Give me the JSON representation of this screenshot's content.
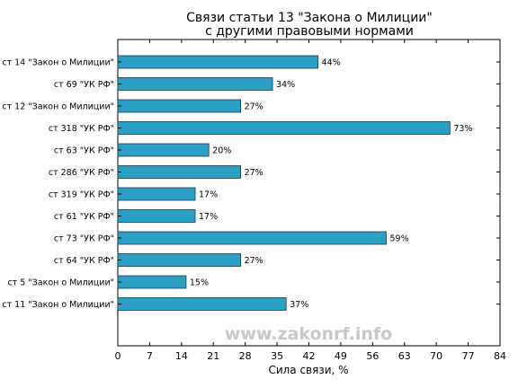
{
  "chart_data": {
    "type": "bar",
    "orientation": "horizontal",
    "title_lines": [
      "Связи статьи 13 \"Закона о Милиции\"",
      "с другими правовыми нормами"
    ],
    "xlabel": "Сила связи, %",
    "ylabel": "",
    "categories": [
      "ст 14 \"Закон о Милиции\"",
      "ст 69 \"УК РФ\"",
      "ст 12 \"Закон о Милиции\"",
      "ст 318 \"УК РФ\"",
      "ст 63 \"УК РФ\"",
      "ст 286 \"УК РФ\"",
      "ст 319 \"УК РФ\"",
      "ст 61 \"УК РФ\"",
      "ст 73 \"УК РФ\"",
      "ст 64 \"УК РФ\"",
      "ст 5 \"Закон о Милиции\"",
      "ст 11 \"Закон о Милиции\""
    ],
    "values": [
      44,
      34,
      27,
      73,
      20,
      27,
      17,
      17,
      59,
      27,
      15,
      37
    ],
    "data_labels": [
      "44%",
      "34%",
      "27%",
      "73%",
      "20%",
      "27%",
      "17%",
      "17%",
      "59%",
      "27%",
      "15%",
      "37%"
    ],
    "xlim": [
      0,
      84
    ],
    "xticks": [
      0,
      7,
      14,
      21,
      28,
      35,
      42,
      49,
      56,
      63,
      70,
      77,
      84
    ],
    "grid": false,
    "legend": "none",
    "bar_color": "#2b9fc4",
    "bar_edge_color": "#1a3a48"
  },
  "watermark": "www.zakonrf.info"
}
